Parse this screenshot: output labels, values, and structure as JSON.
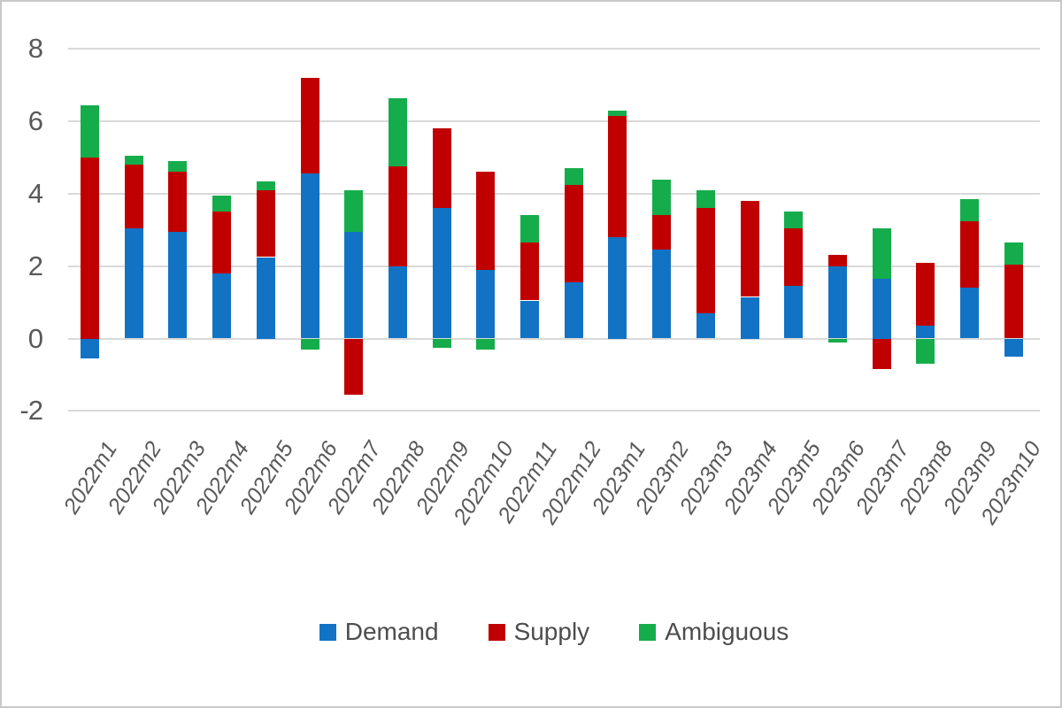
{
  "chart_data": {
    "type": "bar",
    "stacked": true,
    "title": "",
    "xlabel": "",
    "ylabel": "",
    "categories": [
      "2022m1",
      "2022m2",
      "2022m3",
      "2022m4",
      "2022m5",
      "2022m6",
      "2022m7",
      "2022m8",
      "2022m9",
      "2022m10",
      "2022m11",
      "2022m12",
      "2023m1",
      "2023m2",
      "2023m3",
      "2023m4",
      "2023m5",
      "2023m6",
      "2023m7",
      "2023m8",
      "2023m9",
      "2023m10"
    ],
    "series": [
      {
        "name": "Demand",
        "color": "#1273c4",
        "values": [
          -0.55,
          3.05,
          2.95,
          1.8,
          2.25,
          4.55,
          2.95,
          2.0,
          3.6,
          1.9,
          1.05,
          1.55,
          2.8,
          2.45,
          0.7,
          1.15,
          1.45,
          2.0,
          1.65,
          0.35,
          1.4,
          -0.5
        ]
      },
      {
        "name": "Supply",
        "color": "#c00000",
        "values": [
          5.0,
          1.75,
          1.65,
          1.7,
          1.85,
          2.65,
          -1.55,
          2.75,
          2.2,
          2.7,
          1.6,
          2.7,
          3.35,
          0.95,
          2.9,
          2.65,
          1.6,
          0.3,
          -0.85,
          1.75,
          1.85,
          2.05
        ]
      },
      {
        "name": "Ambiguous",
        "color": "#15ad4b",
        "values": [
          1.45,
          0.25,
          0.3,
          0.45,
          0.25,
          -0.3,
          1.15,
          1.9,
          -0.25,
          -0.3,
          0.75,
          0.45,
          0.15,
          1.0,
          0.5,
          0,
          0.45,
          -0.1,
          1.4,
          -0.7,
          0.6,
          0.6
        ]
      }
    ],
    "ylim": [
      -2,
      8
    ],
    "yticks": [
      8,
      6,
      4,
      2,
      0,
      -2
    ],
    "grid": true,
    "gridline_color": "#d9d9d9",
    "axis_text_color": "#595959",
    "legend_position": "bottom"
  }
}
